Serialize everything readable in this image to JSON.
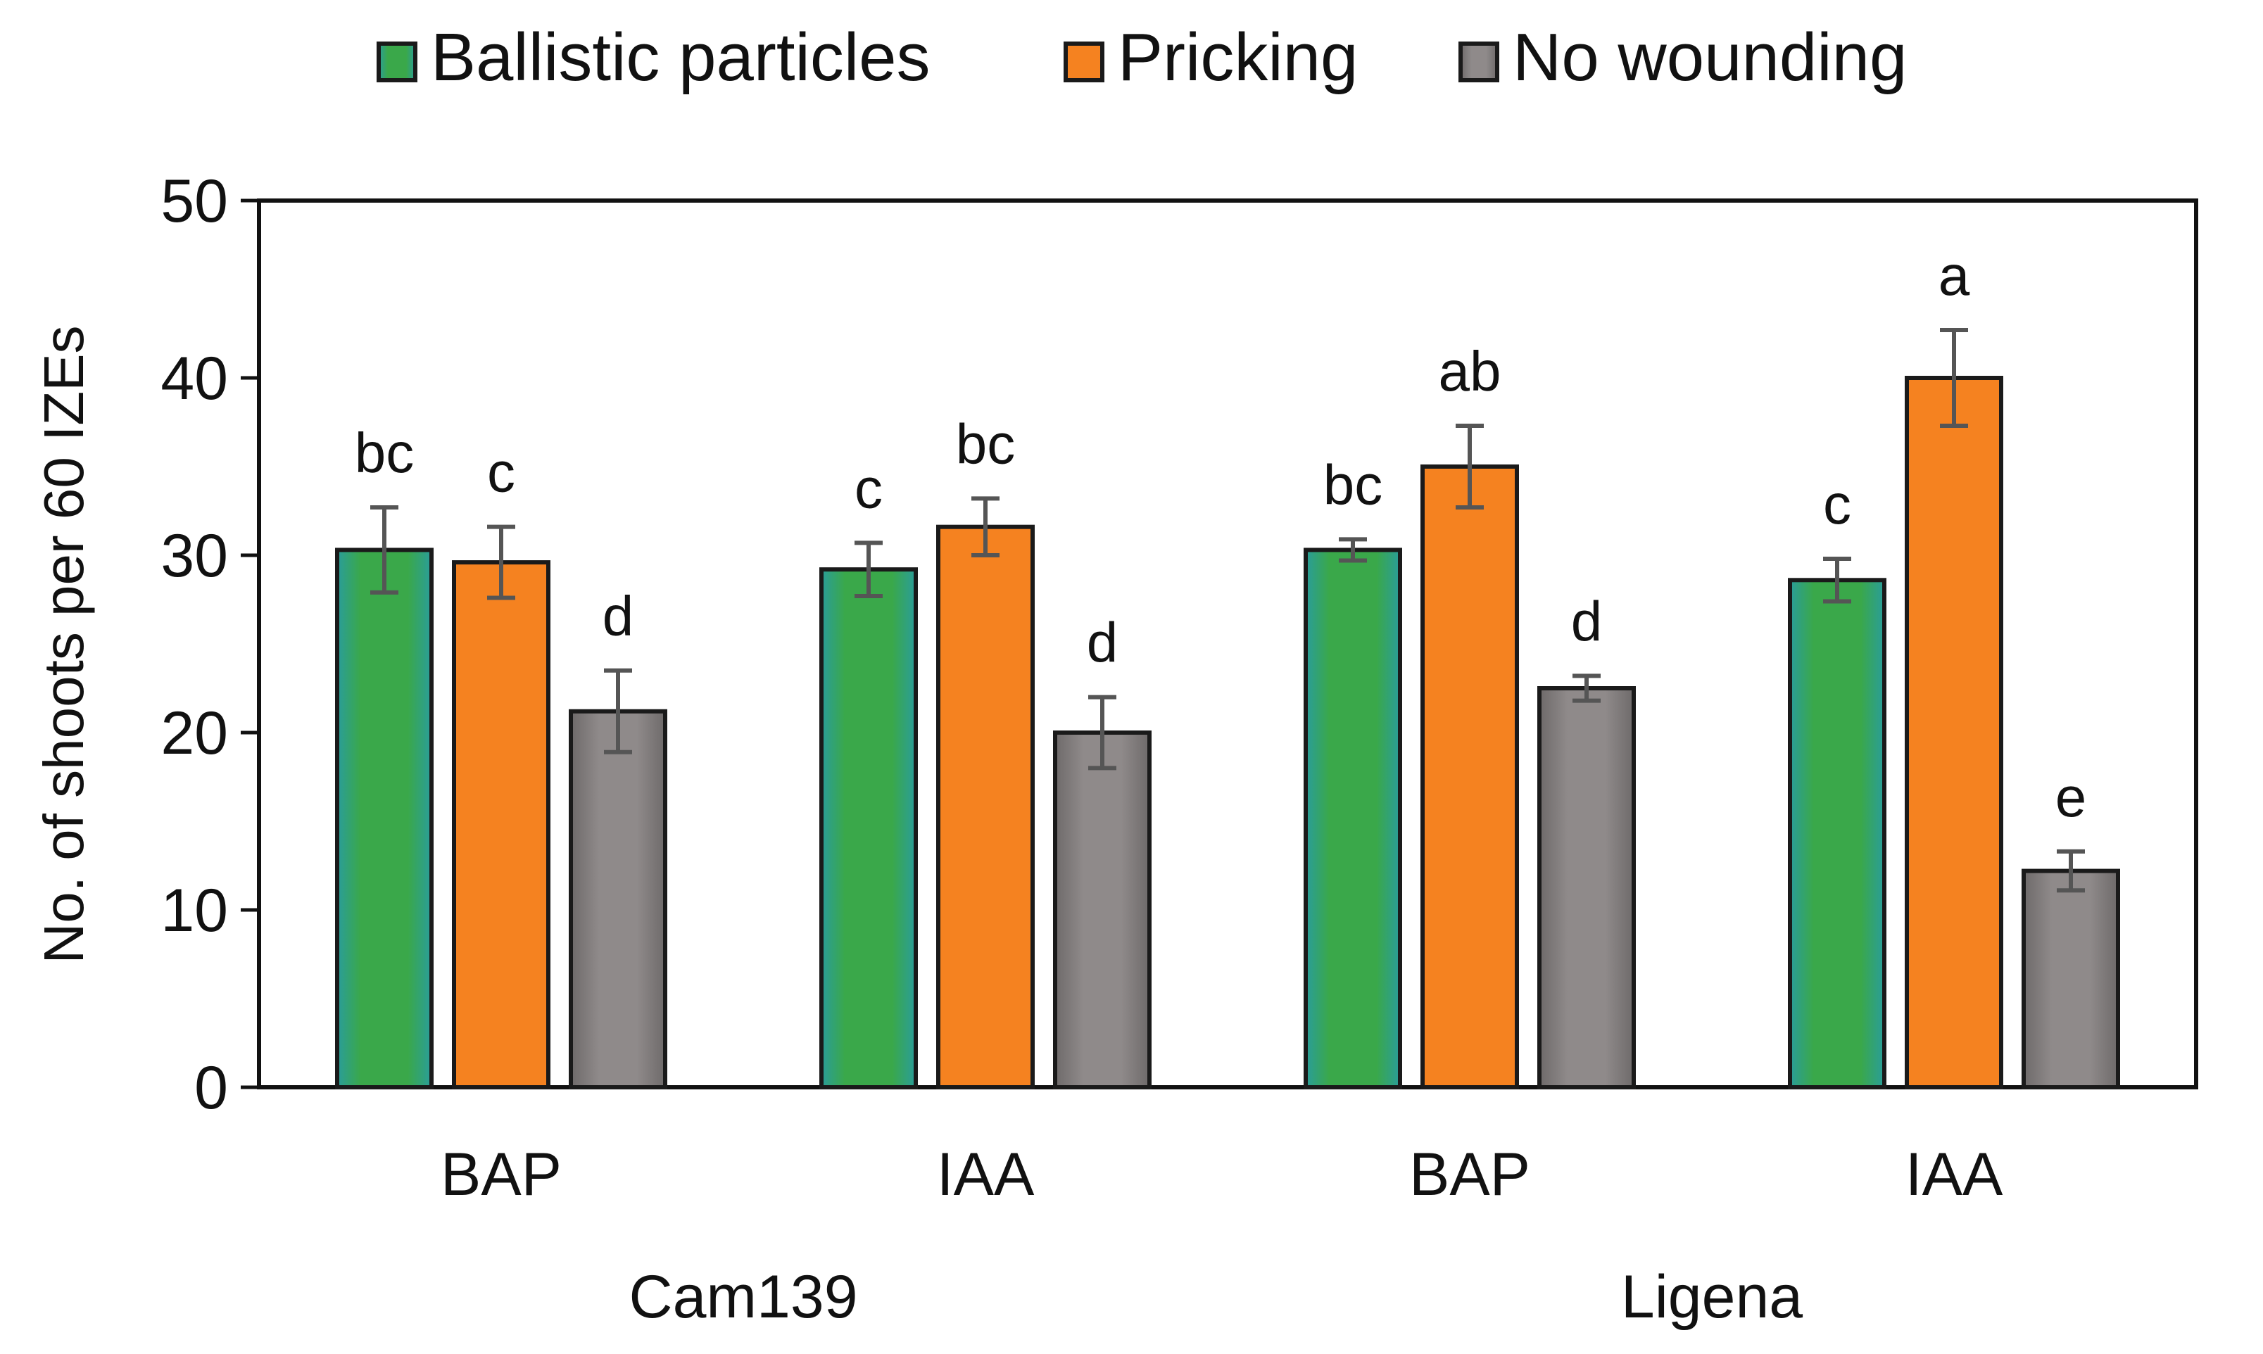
{
  "chart_data": {
    "type": "bar",
    "title": "",
    "xlabel": "",
    "ylabel": "No. of shoots per 60 IZEs",
    "ylim": [
      0,
      50
    ],
    "yticks": [
      0,
      10,
      20,
      30,
      40,
      50
    ],
    "grid": false,
    "legend_position": "top",
    "categories": [
      "BAP",
      "IAA",
      "BAP",
      "IAA"
    ],
    "groups": [
      {
        "label": "Cam139",
        "categories": [
          0,
          1
        ]
      },
      {
        "label": "Ligena",
        "categories": [
          2,
          3
        ]
      }
    ],
    "series": [
      {
        "name": "Ballistic particles",
        "color": "#3aa84a",
        "edge_color": "#2a9d9a",
        "values": [
          30.3,
          29.2,
          30.3,
          28.6
        ],
        "errors": [
          2.4,
          1.5,
          0.6,
          1.2
        ],
        "sig": [
          "bc",
          "c",
          "bc",
          "c"
        ]
      },
      {
        "name": "Pricking",
        "color": "#f58220",
        "edge_color": "#f58220",
        "values": [
          29.6,
          31.6,
          35.0,
          40.0
        ],
        "errors": [
          2.0,
          1.6,
          2.3,
          2.7
        ],
        "sig": [
          "c",
          "bc",
          "ab",
          "a"
        ]
      },
      {
        "name": "No wounding",
        "color": "#8a8585",
        "edge_color": "#6e6a6a",
        "values": [
          21.2,
          20.0,
          22.5,
          12.2
        ],
        "errors": [
          2.3,
          2.0,
          0.7,
          1.1
        ],
        "sig": [
          "d",
          "d",
          "d",
          "e"
        ]
      }
    ]
  }
}
